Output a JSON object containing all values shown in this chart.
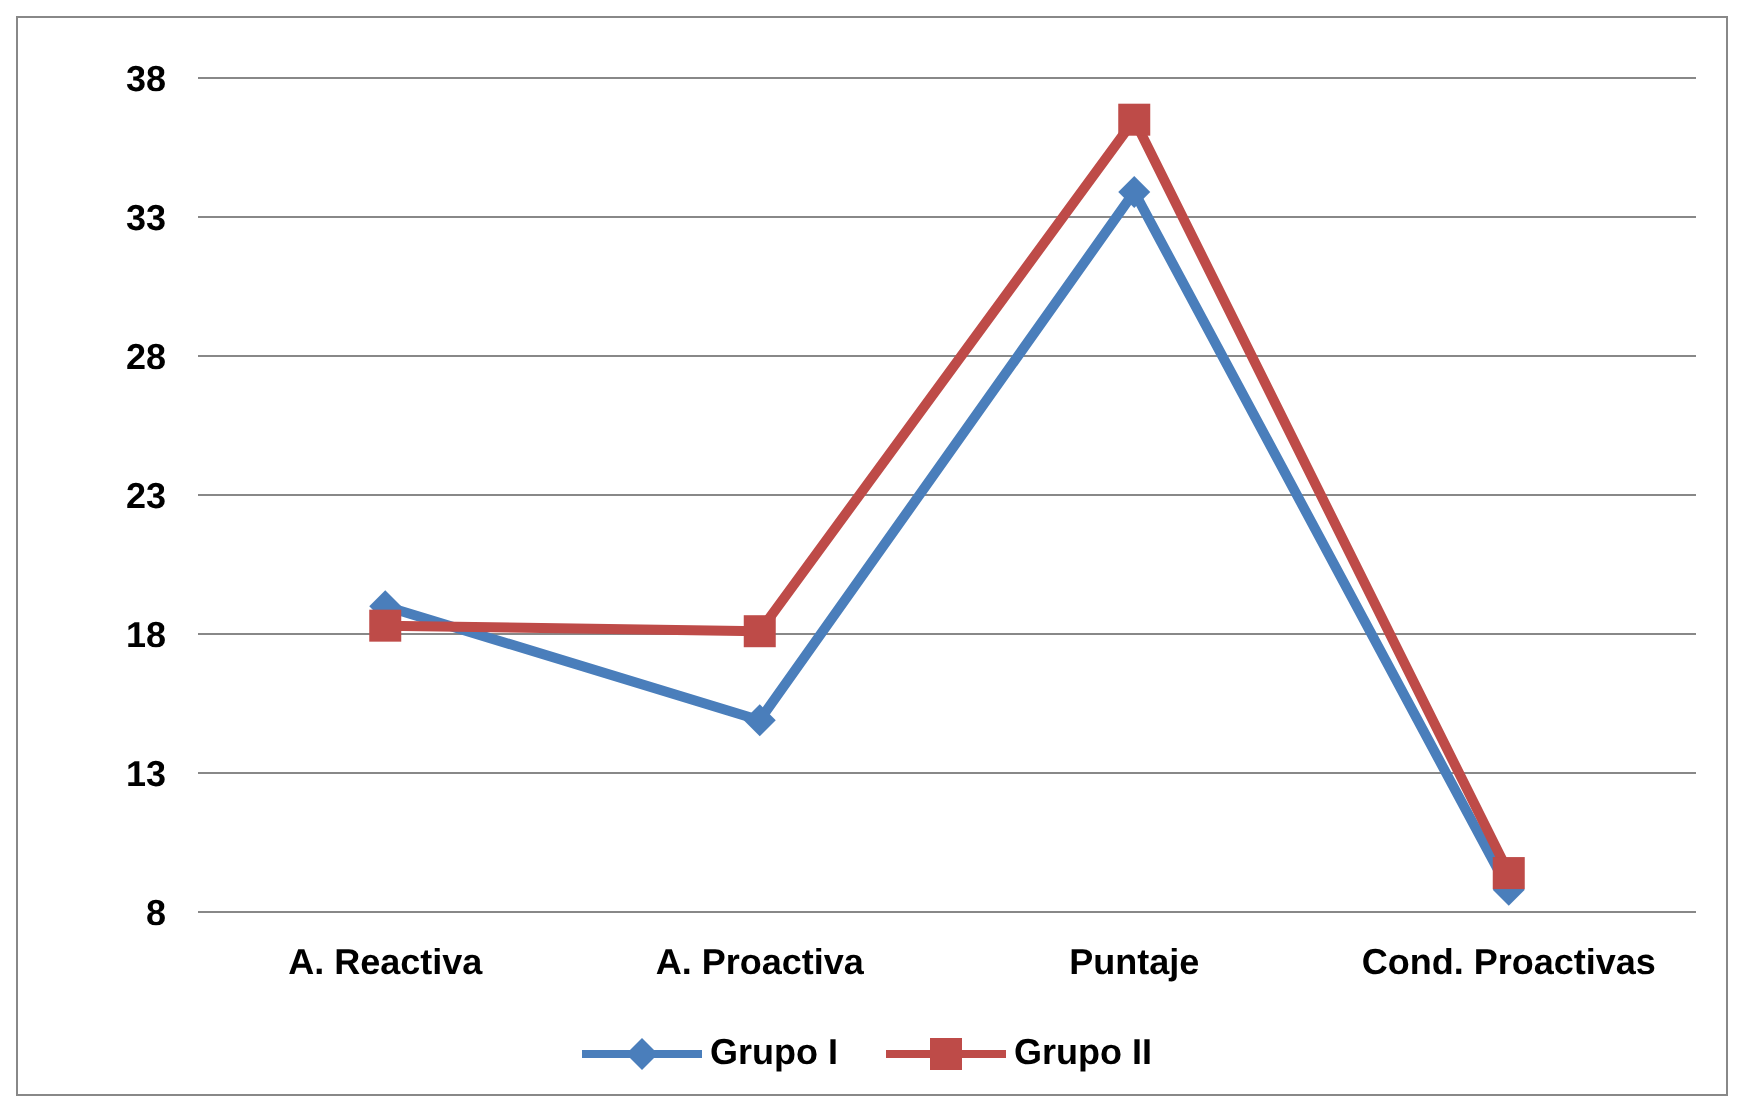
{
  "chart_data": {
    "type": "line",
    "categories": [
      "A. Reactiva",
      "A. Proactiva",
      "Puntaje",
      "Cond. Proactivas"
    ],
    "series": [
      {
        "name": "Grupo I",
        "color": "#4a7ebb",
        "marker": "diamond",
        "values": [
          19,
          14.9,
          33.9,
          8.8
        ]
      },
      {
        "name": "Grupo II",
        "color": "#be4b48",
        "marker": "square",
        "values": [
          18.3,
          18.1,
          36.5,
          9.4
        ]
      }
    ],
    "ylim": [
      8,
      38
    ],
    "yticks": [
      8,
      13,
      18,
      23,
      28,
      33,
      38
    ],
    "grid": "y",
    "legend": "bottom",
    "line_style": "solid"
  }
}
